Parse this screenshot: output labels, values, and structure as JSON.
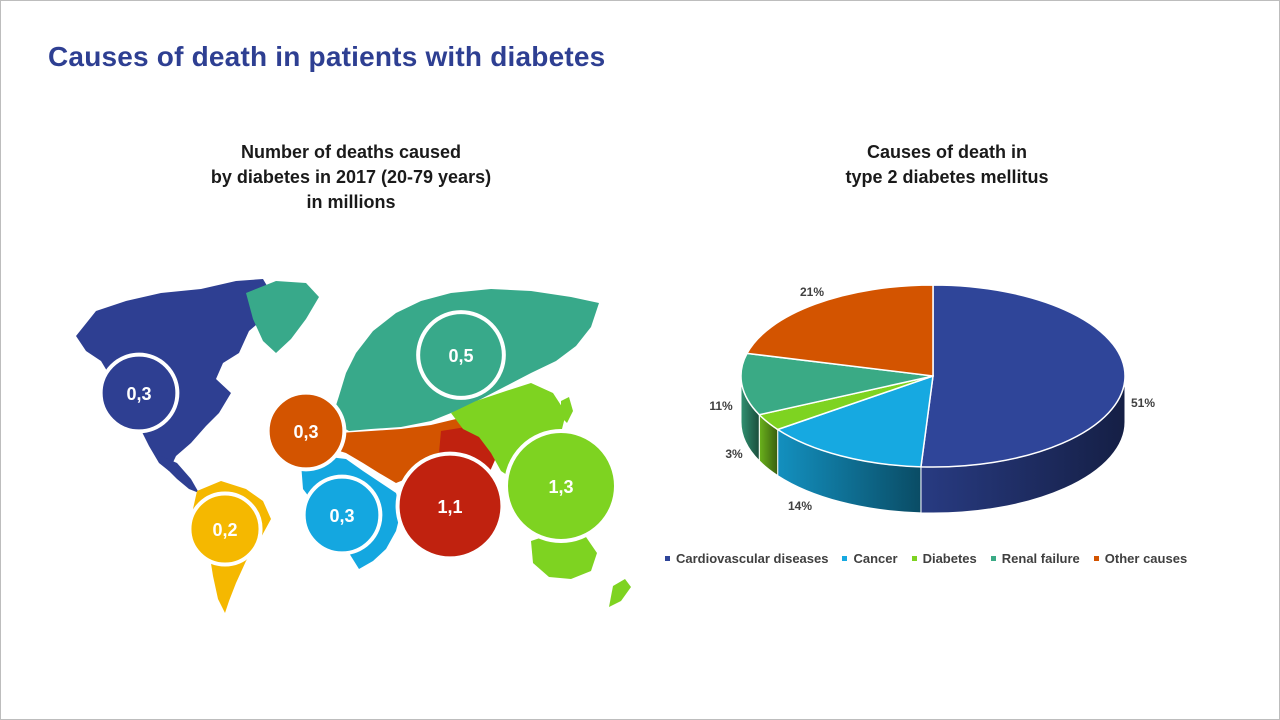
{
  "slide": {
    "title": "Causes of death in patients with diabetes"
  },
  "map_panel": {
    "title_lines": [
      "Number of deaths caused",
      "by diabetes in 2017 (20-79 years)",
      "in millions"
    ]
  },
  "pie_panel": {
    "title_lines": [
      "Causes of death in",
      "type 2 diabetes mellitus"
    ]
  },
  "colors": {
    "title": "#2e3f92",
    "north_america": "#2e3f92",
    "south_america": "#f5b800",
    "europe": "#38a98a",
    "mena": "#d35400",
    "africa": "#14a7e0",
    "south_east_asia": "#c0220f",
    "western_pacific": "#7ed321"
  },
  "chart_data": [
    {
      "type": "bubble-map",
      "unit": "millions",
      "regions": [
        {
          "region": "north-america",
          "label": "0,3",
          "value": 0.3,
          "color": "#2e3f92"
        },
        {
          "region": "south-america",
          "label": "0,2",
          "value": 0.2,
          "color": "#f5b800"
        },
        {
          "region": "europe",
          "label": "0,5",
          "value": 0.5,
          "color": "#38a98a"
        },
        {
          "region": "middle-east-north-africa",
          "label": "0,3",
          "value": 0.3,
          "color": "#d35400"
        },
        {
          "region": "africa",
          "label": "0,3",
          "value": 0.3,
          "color": "#14a7e0"
        },
        {
          "region": "south-east-asia",
          "label": "1,1",
          "value": 1.1,
          "color": "#c0220f"
        },
        {
          "region": "western-pacific",
          "label": "1,3",
          "value": 1.3,
          "color": "#7ed321"
        }
      ]
    },
    {
      "type": "pie",
      "style": "3d",
      "slices": [
        {
          "name": "Cardiovascular diseases",
          "value": 51,
          "label": "51%",
          "color": "#2f4599"
        },
        {
          "name": "Cancer",
          "value": 14,
          "label": "14%",
          "color": "#16a9e1"
        },
        {
          "name": "Diabetes",
          "value": 3,
          "label": "3%",
          "color": "#7ed321"
        },
        {
          "name": "Renal failure",
          "value": 11,
          "label": "11%",
          "color": "#3aaa85"
        },
        {
          "name": "Other causes",
          "value": 21,
          "label": "21%",
          "color": "#d35400"
        }
      ],
      "legend_position": "bottom"
    }
  ]
}
